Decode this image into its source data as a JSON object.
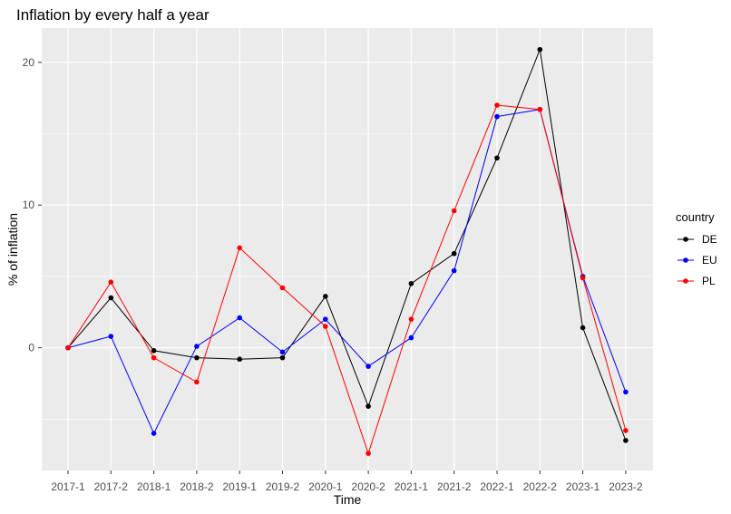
{
  "chart_data": {
    "type": "line",
    "title": "Inflation by every half a year",
    "xlabel": "Time",
    "ylabel": "% of inflation",
    "categories": [
      "2017-1",
      "2017-2",
      "2018-1",
      "2018-2",
      "2019-1",
      "2019-2",
      "2020-1",
      "2020-2",
      "2021-1",
      "2021-2",
      "2022-1",
      "2022-2",
      "2023-1",
      "2023-2"
    ],
    "ylim": [
      -8.6,
      22.4
    ],
    "y_ticks": [
      0,
      10,
      20
    ],
    "grid": true,
    "legend": {
      "title": "country",
      "position": "right"
    },
    "series": [
      {
        "name": "DE",
        "color": "#000000",
        "values": [
          0.0,
          3.5,
          -0.2,
          -0.7,
          -0.8,
          -0.7,
          3.6,
          -4.1,
          4.5,
          6.6,
          13.3,
          20.9,
          1.4,
          -6.5
        ]
      },
      {
        "name": "EU",
        "color": "#0000ff",
        "values": [
          0.0,
          0.8,
          -6.0,
          0.1,
          2.1,
          -0.3,
          2.0,
          -1.3,
          0.7,
          5.4,
          16.2,
          16.7,
          5.0,
          -3.1
        ]
      },
      {
        "name": "PL",
        "color": "#ff0000",
        "values": [
          0.0,
          4.6,
          -0.7,
          -2.4,
          7.0,
          4.2,
          1.5,
          -7.4,
          2.0,
          9.6,
          17.0,
          16.7,
          4.9,
          -5.8
        ]
      }
    ]
  }
}
